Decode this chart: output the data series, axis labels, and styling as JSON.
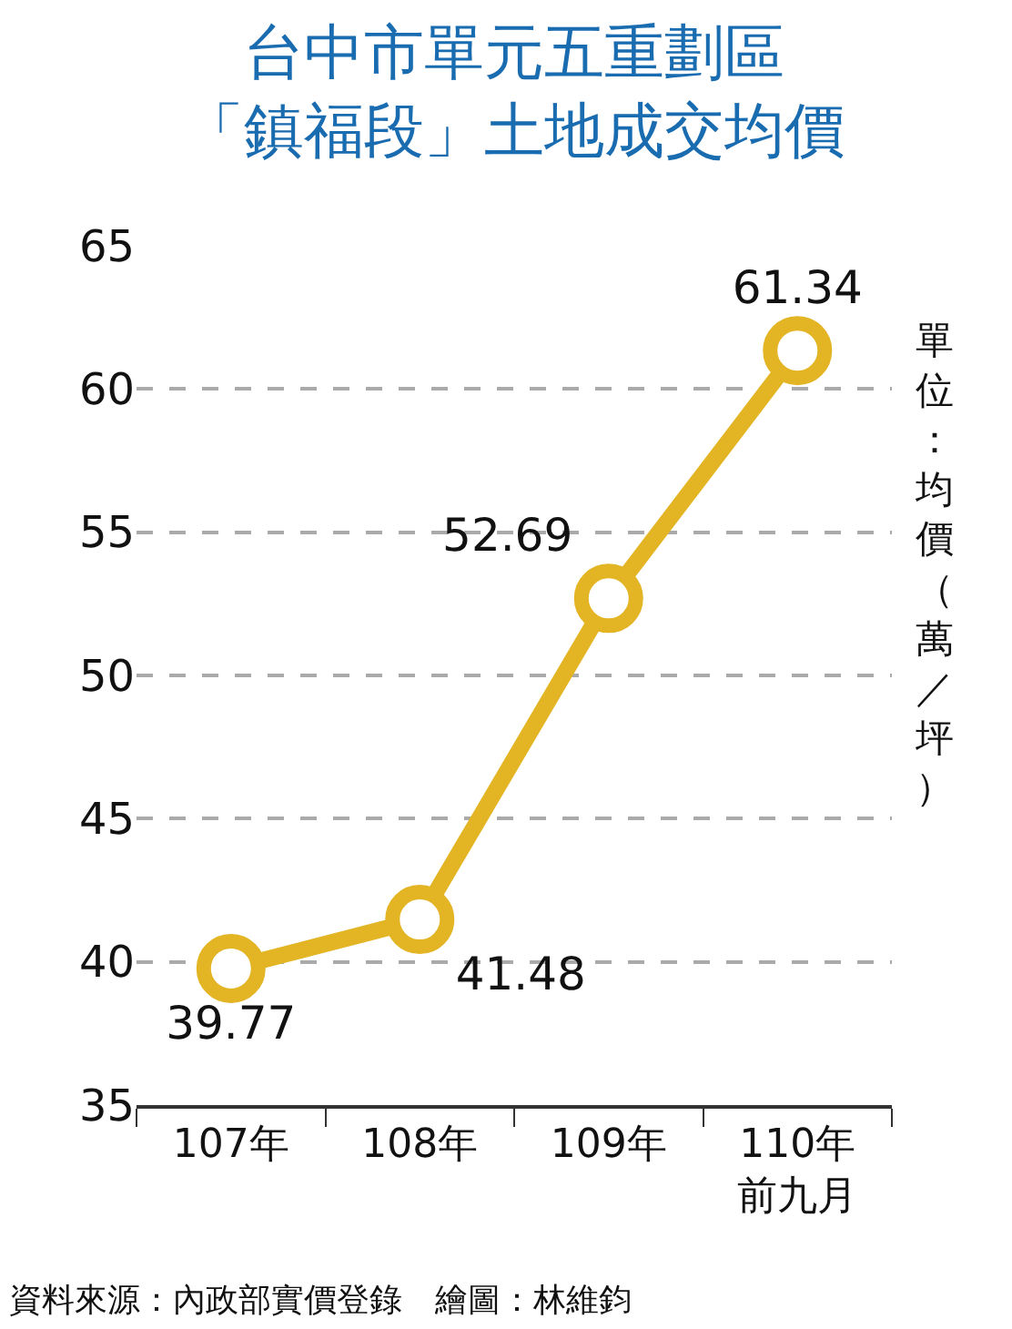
{
  "chart_data": {
    "type": "line",
    "title": "台中市單元五重劃區「鎮福段」土地成交均價",
    "ylabel": "單位：均價（萬／坪）",
    "categories": [
      "107年",
      "108年",
      "109年",
      "110年前九月"
    ],
    "series": [
      {
        "color": "#e3b423",
        "values": [
          39.77,
          41.48,
          52.69,
          61.34
        ]
      }
    ],
    "ylim": [
      35,
      65
    ],
    "yticks": [
      35,
      40,
      45,
      50,
      55,
      60,
      65
    ],
    "grid": "y",
    "marker": "circle",
    "line_style": "solid",
    "data_labels": true,
    "legend": false,
    "annotations": [
      "資料來源：內政部實價登錄　繪圖：林維鈞"
    ]
  }
}
